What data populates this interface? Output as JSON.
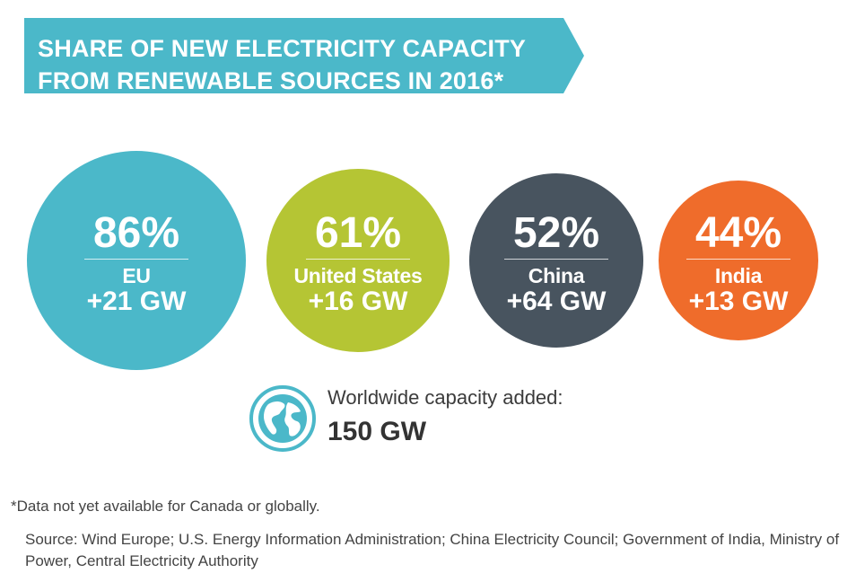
{
  "title": {
    "line1": "SHARE OF NEW ELECTRICITY CAPACITY",
    "line2": "FROM RENEWABLE SOURCES IN 2016*"
  },
  "colors": {
    "banner": "#4bb8c9",
    "EU": "#4bb8c9",
    "United States": "#b5c534",
    "China": "#48545f",
    "India": "#ef6c2b"
  },
  "chart_data": {
    "type": "bubble",
    "title": "SHARE OF NEW ELECTRICITY CAPACITY FROM RENEWABLE SOURCES IN 2016*",
    "unit_share": "%",
    "unit_capacity": "GW",
    "categories": [
      "EU",
      "United States",
      "China",
      "India"
    ],
    "share_pct": [
      86,
      61,
      52,
      44
    ],
    "added_gw": [
      21,
      16,
      64,
      13
    ],
    "items": [
      {
        "name": "EU",
        "pct": "86%",
        "gw": "+21 GW",
        "value": 86
      },
      {
        "name": "United States",
        "pct": "61%",
        "gw": "+16 GW",
        "value": 61
      },
      {
        "name": "China",
        "pct": "52%",
        "gw": "+64 GW",
        "value": 52
      },
      {
        "name": "India",
        "pct": "44%",
        "gw": "+13 GW",
        "value": 44
      }
    ]
  },
  "worldwide": {
    "icon": "globe-icon",
    "label": "Worldwide capacity added:",
    "value": "150 GW"
  },
  "footnote": "*Data not yet available for Canada or globally.",
  "source": "Source: Wind Europe; U.S. Energy Information Administration; China Electricity Council; Government of India, Ministry of Power, Central Electricity Authority"
}
